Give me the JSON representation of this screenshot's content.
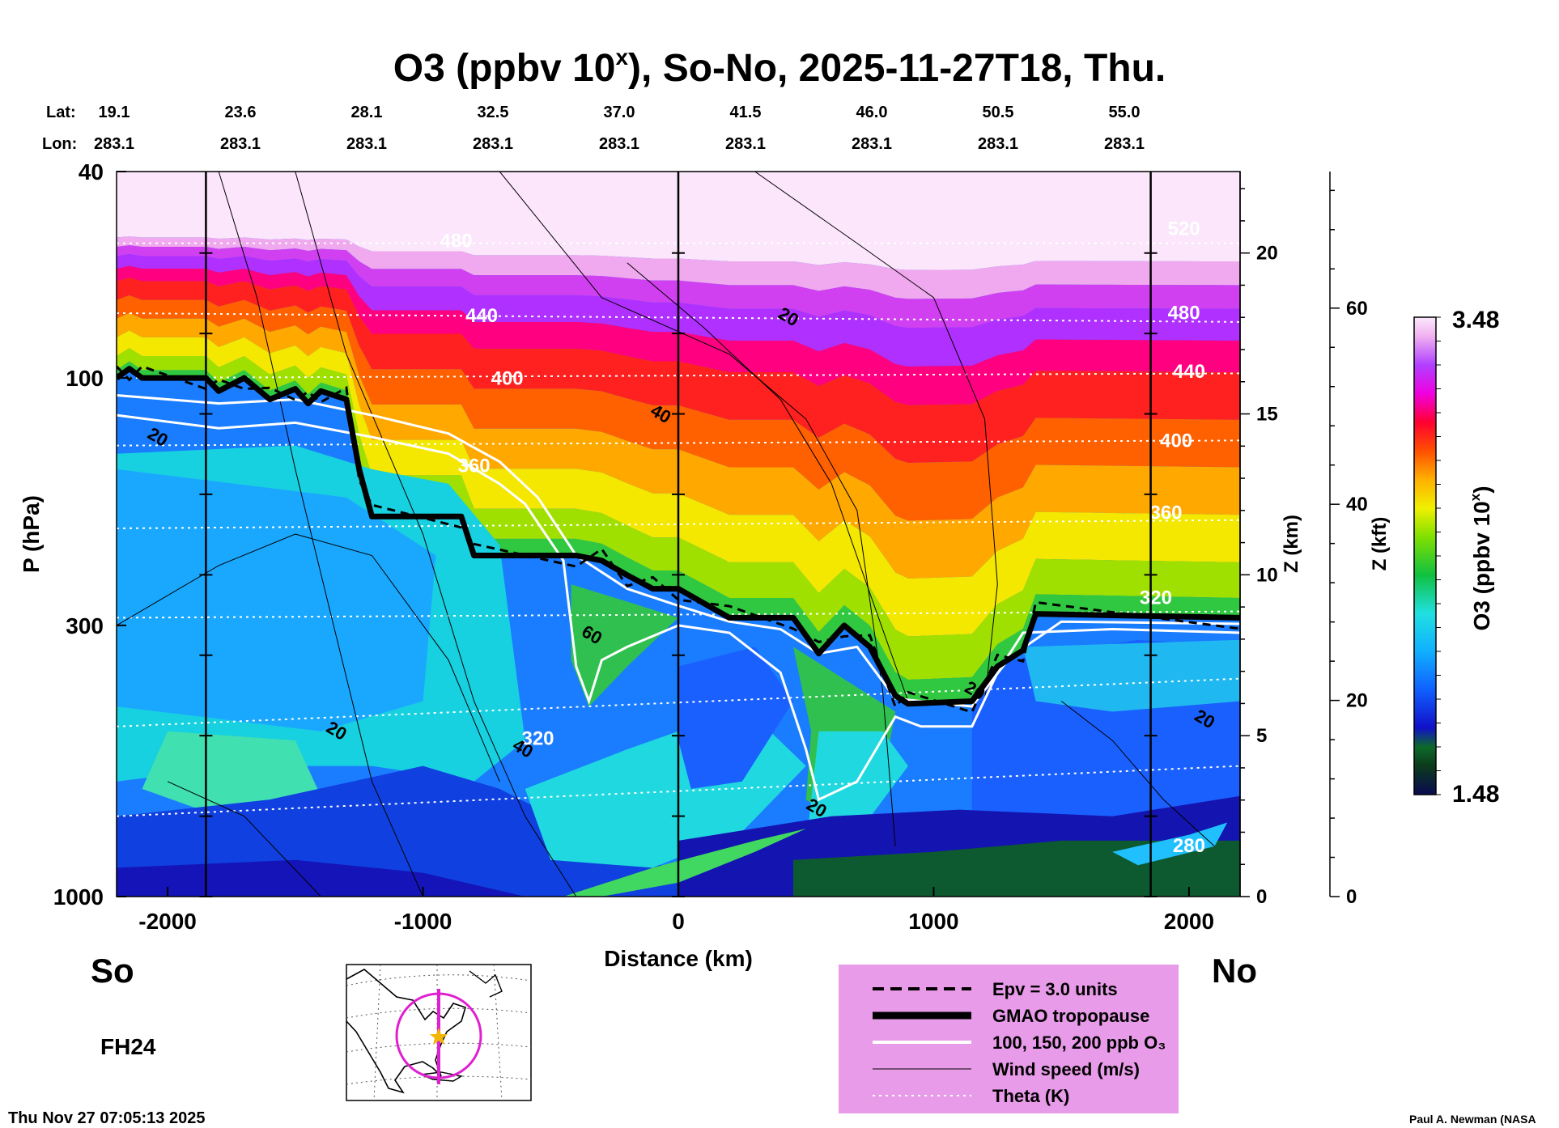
{
  "chart_data": {
    "type": "heatmap",
    "title_prefix": "O3 (ppbv 10",
    "title_exp": "x",
    "title_suffix": "), So-No, 2025-11-27T18, Thu.",
    "xlabel": "Distance (km)",
    "ylabel": "P (hPa)",
    "zlabel_km": "Z (km)",
    "zlabel_kft": "Z (kft)",
    "colorbar_label_prefix": "O3 (ppbv 10",
    "colorbar_label_exp": "x",
    "colorbar_label_suffix": ")",
    "xlim": [
      -2200,
      2200
    ],
    "ylim_hpa": [
      1000,
      40
    ],
    "x_ticks": [
      {
        "v": -2000,
        "t": "-2000"
      },
      {
        "v": -1000,
        "t": "-1000"
      },
      {
        "v": 0,
        "t": "0"
      },
      {
        "v": 1000,
        "t": "1000"
      },
      {
        "v": 2000,
        "t": "2000"
      }
    ],
    "p_ticks": [
      {
        "v": 40,
        "t": "40"
      },
      {
        "v": 100,
        "t": "100"
      },
      {
        "v": 300,
        "t": "300"
      },
      {
        "v": 1000,
        "t": "1000"
      }
    ],
    "z_km_ticks": [
      {
        "v": 0,
        "t": "0"
      },
      {
        "v": 5,
        "t": "5"
      },
      {
        "v": 10,
        "t": "10"
      },
      {
        "v": 15,
        "t": "15"
      },
      {
        "v": 20,
        "t": "20"
      }
    ],
    "z_kft_ticks": [
      {
        "v": 0,
        "t": "0"
      },
      {
        "v": 20,
        "t": "20"
      },
      {
        "v": 40,
        "t": "40"
      },
      {
        "v": 60,
        "t": "60"
      }
    ],
    "lat_label": "Lat:",
    "lon_label": "Lon:",
    "lat_values": [
      "19.1",
      "23.6",
      "28.1",
      "32.5",
      "37.0",
      "41.5",
      "46.0",
      "50.5",
      "55.0"
    ],
    "lon_values": [
      "283.1",
      "283.1",
      "283.1",
      "283.1",
      "283.1",
      "283.1",
      "283.1",
      "283.1",
      "283.1"
    ],
    "vertical_lines_km": [
      -1850,
      0,
      1850
    ],
    "colorbar_max": "3.48",
    "colorbar_min": "1.48",
    "colorbar_range": [
      1.48,
      3.48
    ],
    "tropopause": [
      {
        "x": -2200,
        "p": 100
      },
      {
        "x": -2150,
        "p": 96
      },
      {
        "x": -2100,
        "p": 100
      },
      {
        "x": -1850,
        "p": 100
      },
      {
        "x": -1800,
        "p": 106
      },
      {
        "x": -1700,
        "p": 100
      },
      {
        "x": -1600,
        "p": 110
      },
      {
        "x": -1500,
        "p": 105
      },
      {
        "x": -1450,
        "p": 112
      },
      {
        "x": -1400,
        "p": 106
      },
      {
        "x": -1300,
        "p": 110
      },
      {
        "x": -1250,
        "p": 150
      },
      {
        "x": -1200,
        "p": 185
      },
      {
        "x": -850,
        "p": 185
      },
      {
        "x": -800,
        "p": 220
      },
      {
        "x": -400,
        "p": 220
      },
      {
        "x": -300,
        "p": 225
      },
      {
        "x": -200,
        "p": 240
      },
      {
        "x": -100,
        "p": 255
      },
      {
        "x": 0,
        "p": 255
      },
      {
        "x": 200,
        "p": 290
      },
      {
        "x": 450,
        "p": 290
      },
      {
        "x": 550,
        "p": 340
      },
      {
        "x": 650,
        "p": 300
      },
      {
        "x": 750,
        "p": 330
      },
      {
        "x": 850,
        "p": 410
      },
      {
        "x": 900,
        "p": 425
      },
      {
        "x": 1150,
        "p": 420
      },
      {
        "x": 1250,
        "p": 360
      },
      {
        "x": 1350,
        "p": 335
      },
      {
        "x": 1400,
        "p": 285
      },
      {
        "x": 2200,
        "p": 290
      }
    ],
    "ozone_100ppb": [
      {
        "x": -2200,
        "p": 118
      },
      {
        "x": -1800,
        "p": 125
      },
      {
        "x": -1500,
        "p": 122
      },
      {
        "x": -1200,
        "p": 130
      },
      {
        "x": -900,
        "p": 140
      },
      {
        "x": -700,
        "p": 160
      },
      {
        "x": -600,
        "p": 175
      },
      {
        "x": -450,
        "p": 225
      },
      {
        "x": -400,
        "p": 360
      },
      {
        "x": -350,
        "p": 420
      },
      {
        "x": -300,
        "p": 350
      },
      {
        "x": -200,
        "p": 330
      },
      {
        "x": 0,
        "p": 300
      },
      {
        "x": 200,
        "p": 310
      },
      {
        "x": 400,
        "p": 370
      },
      {
        "x": 500,
        "p": 520
      },
      {
        "x": 550,
        "p": 650
      },
      {
        "x": 700,
        "p": 600
      },
      {
        "x": 850,
        "p": 450
      },
      {
        "x": 950,
        "p": 470
      },
      {
        "x": 1150,
        "p": 470
      },
      {
        "x": 1250,
        "p": 370
      },
      {
        "x": 1350,
        "p": 310
      },
      {
        "x": 1700,
        "p": 305
      },
      {
        "x": 2200,
        "p": 310
      }
    ],
    "ozone_200ppb": [
      {
        "x": -2200,
        "p": 108
      },
      {
        "x": -1800,
        "p": 112
      },
      {
        "x": -1500,
        "p": 110
      },
      {
        "x": -1200,
        "p": 118
      },
      {
        "x": -900,
        "p": 128
      },
      {
        "x": -700,
        "p": 145
      },
      {
        "x": -550,
        "p": 170
      },
      {
        "x": -400,
        "p": 220
      },
      {
        "x": -200,
        "p": 255
      },
      {
        "x": 0,
        "p": 275
      },
      {
        "x": 200,
        "p": 295
      },
      {
        "x": 400,
        "p": 305
      },
      {
        "x": 550,
        "p": 340
      },
      {
        "x": 700,
        "p": 330
      },
      {
        "x": 850,
        "p": 415
      },
      {
        "x": 1150,
        "p": 430
      },
      {
        "x": 1300,
        "p": 345
      },
      {
        "x": 1500,
        "p": 295
      },
      {
        "x": 2200,
        "p": 298
      }
    ],
    "theta_labels": [
      {
        "x": -870,
        "p": 56,
        "t": "480"
      },
      {
        "x": -770,
        "p": 78,
        "t": "440"
      },
      {
        "x": -670,
        "p": 103,
        "t": "400"
      },
      {
        "x": -800,
        "p": 152,
        "t": "360"
      },
      {
        "x": -550,
        "p": 510,
        "t": "320"
      },
      {
        "x": 1980,
        "p": 53,
        "t": "520"
      },
      {
        "x": 1980,
        "p": 77,
        "t": "480"
      },
      {
        "x": 2000,
        "p": 100,
        "t": "440"
      },
      {
        "x": 1950,
        "p": 136,
        "t": "400"
      },
      {
        "x": 1910,
        "p": 187,
        "t": "360"
      },
      {
        "x": 1870,
        "p": 273,
        "t": "320"
      },
      {
        "x": 2000,
        "p": 820,
        "t": "280"
      }
    ],
    "wind_labels": [
      {
        "x": -2050,
        "p": 133,
        "t": "20"
      },
      {
        "x": -1350,
        "p": 490,
        "t": "20"
      },
      {
        "x": 420,
        "p": 78,
        "t": "20"
      },
      {
        "x": -80,
        "p": 120,
        "t": "40"
      },
      {
        "x": -350,
        "p": 320,
        "t": "60"
      },
      {
        "x": -620,
        "p": 530,
        "t": "40"
      },
      {
        "x": 530,
        "p": 690,
        "t": "20"
      },
      {
        "x": 1150,
        "p": 410,
        "t": "20"
      },
      {
        "x": 2050,
        "p": 465,
        "t": "20"
      }
    ]
  },
  "labels": {
    "south": "So",
    "north": "No",
    "forecast_hour": "FH24",
    "timestamp": "Thu Nov 27 07:05:13 2025",
    "credit": "Paul A. Newman (NASA"
  },
  "legend": {
    "items": [
      {
        "label": "Epv = 3.0 units",
        "style": "dashed"
      },
      {
        "label": "GMAO tropopause",
        "style": "thick"
      },
      {
        "label": "100, 150, 200 ppb O₃",
        "style": "white"
      },
      {
        "label": "Wind speed (m/s)",
        "style": "thin"
      },
      {
        "label": "Theta (K)",
        "style": "dotted"
      }
    ]
  },
  "colors": {
    "legend_bg": "#e89be8",
    "map_path": "#e020d0",
    "map_star": "#f2b705"
  }
}
